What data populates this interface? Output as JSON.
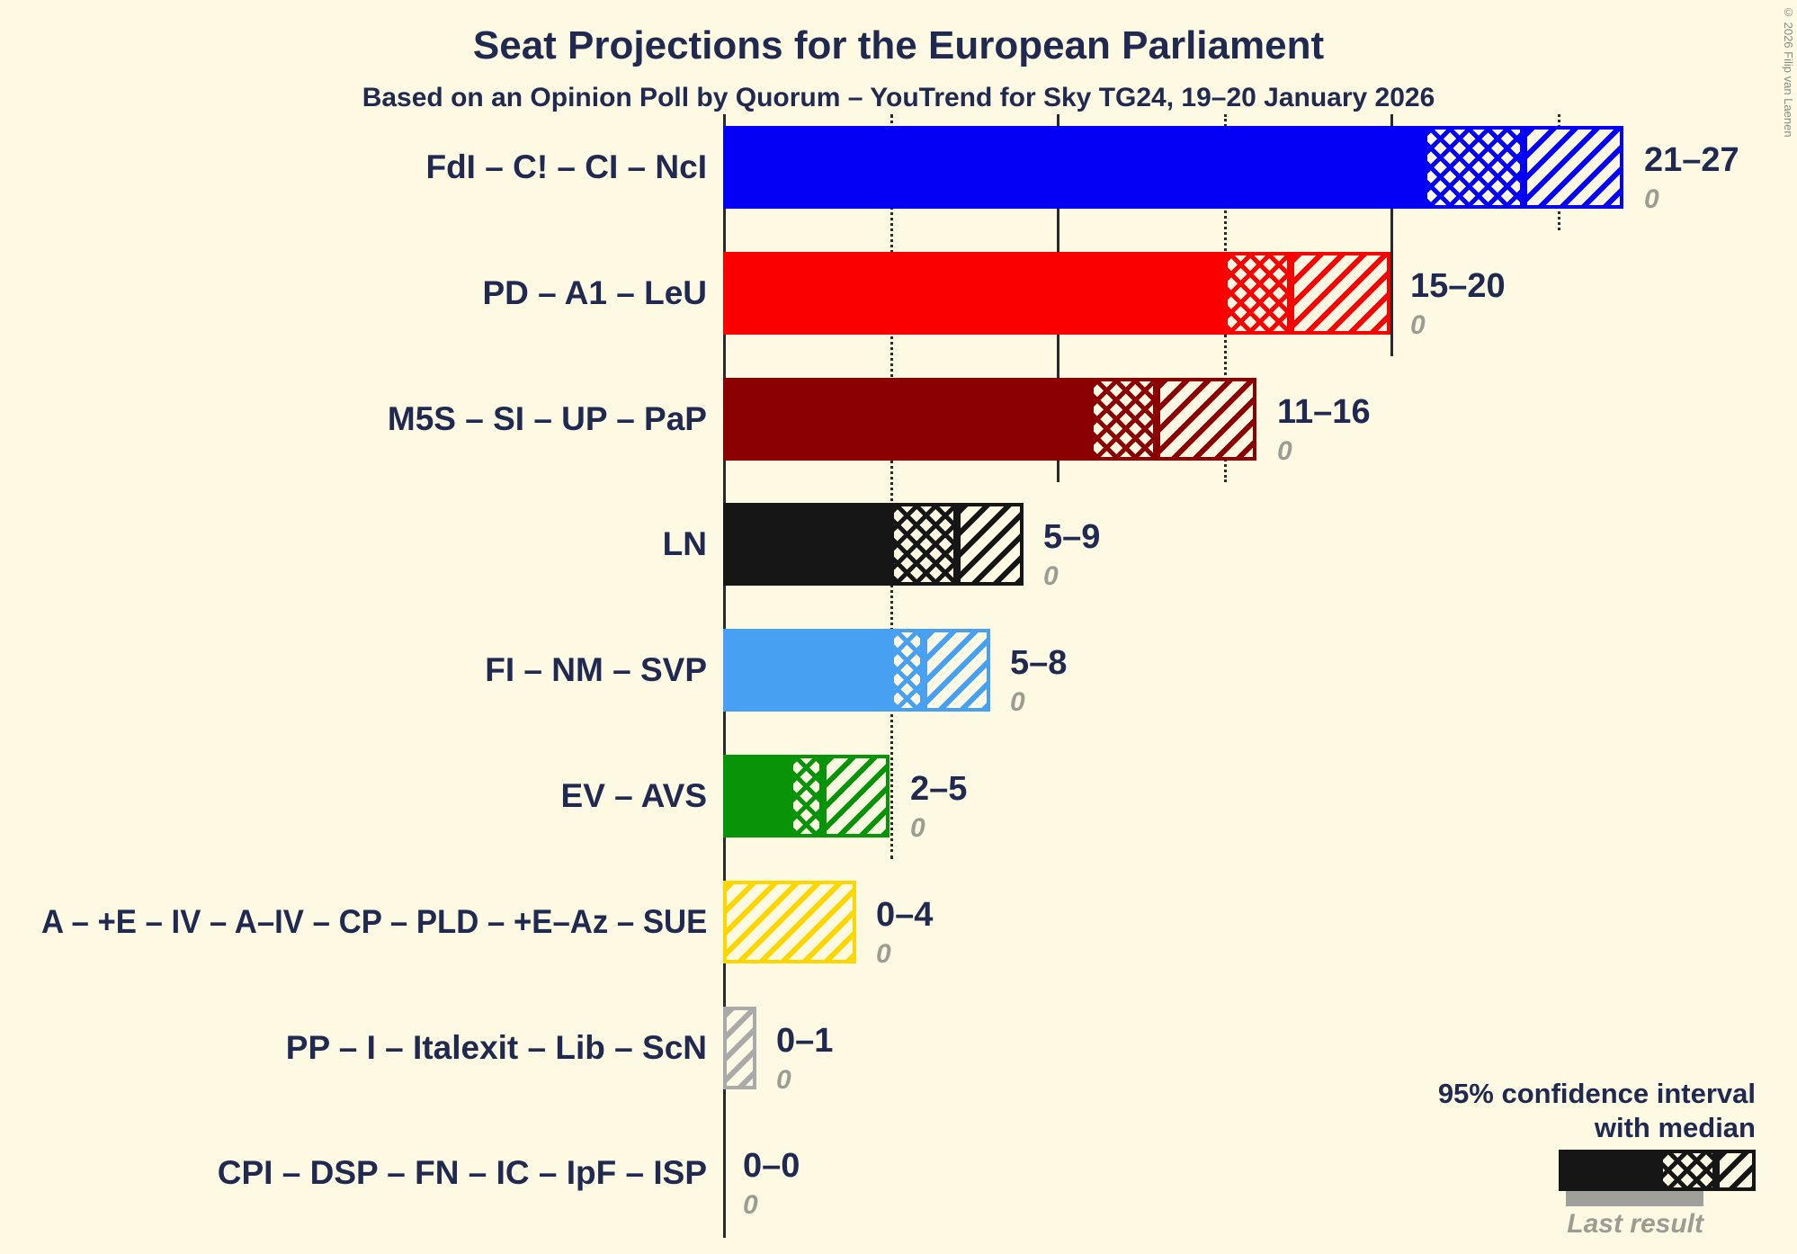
{
  "chart_data": {
    "type": "bar",
    "orientation": "horizontal",
    "unit": "seats",
    "title": "Seat Projections for the European Parliament",
    "subtitle": "Based on an Opinion Poll by Quorum – YouTrend for Sky TG24, 19–20 January 2026",
    "x_axis": {
      "min": 0,
      "max": 27,
      "gridlines": [
        {
          "seats": 5,
          "style": "dotted"
        },
        {
          "seats": 10,
          "style": "solid"
        },
        {
          "seats": 15,
          "style": "dotted"
        },
        {
          "seats": 20,
          "style": "solid"
        },
        {
          "seats": 25,
          "style": "dotted"
        }
      ]
    },
    "rows": [
      {
        "label": "FdI – C! – CI – NcI",
        "color": "#0400F5",
        "low": 21,
        "median": 24,
        "high": 27,
        "range_label": "21–27",
        "last_result": "0"
      },
      {
        "label": "PD – A1 – LeU",
        "color": "#FA0000",
        "low": 15,
        "median": 17,
        "high": 20,
        "range_label": "15–20",
        "last_result": "0"
      },
      {
        "label": "M5S – SI – UP – PaP",
        "color": "#8B0000",
        "low": 11,
        "median": 13,
        "high": 16,
        "range_label": "11–16",
        "last_result": "0"
      },
      {
        "label": "LN",
        "color": "#161616",
        "low": 5,
        "median": 7,
        "high": 9,
        "range_label": "5–9",
        "last_result": "0"
      },
      {
        "label": "FI – NM – SVP",
        "color": "#47A0F2",
        "low": 5,
        "median": 6,
        "high": 8,
        "range_label": "5–8",
        "last_result": "0"
      },
      {
        "label": "EV – AVS",
        "color": "#089408",
        "low": 2,
        "median": 3,
        "high": 5,
        "range_label": "2–5",
        "last_result": "0"
      },
      {
        "label": "A – +E – IV – A–IV – CP – PLD – +E–Az – SUE",
        "color": "#FFD700",
        "low": 0,
        "median": 0,
        "high": 4,
        "range_label": "0–4",
        "last_result": "0"
      },
      {
        "label": "PP – I – Italexit – Lib – ScN",
        "color": "#AAAAAA",
        "low": 0,
        "median": 0,
        "high": 1,
        "range_label": "0–1",
        "last_result": "0"
      },
      {
        "label": "CPI – DSP – FN – IC – IpF – ISP",
        "color": "#000000",
        "low": 0,
        "median": 0,
        "high": 0,
        "range_label": "0–0",
        "last_result": "0"
      }
    ]
  },
  "legend": {
    "line1": "95% confidence interval",
    "line2": "with median",
    "last_result_label": "Last result"
  },
  "copyright": "© 2026 Filip van Laenen",
  "colors": {
    "background": "#FDF9E3",
    "text": "#20294F",
    "gridline": "#2A2A2A",
    "last_result_gray": "#9C9C92"
  }
}
